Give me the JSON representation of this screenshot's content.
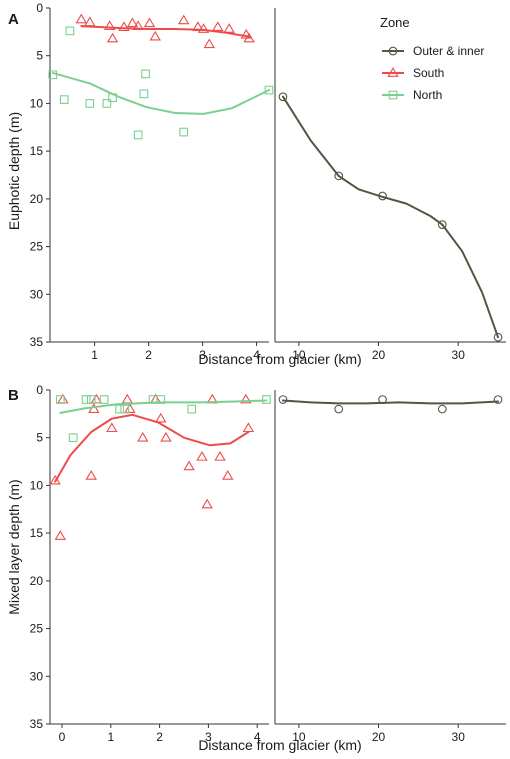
{
  "chart_data": [
    {
      "panel_label": "A",
      "type": "scatter",
      "xlabel": "Distance from glacier (km)",
      "ylabel": "Euphotic depth (m)",
      "y_reversed": true,
      "ylim": [
        0,
        35
      ],
      "yticks": [
        0,
        5,
        10,
        15,
        20,
        25,
        30,
        35
      ],
      "facets": [
        {
          "name": "near",
          "xlim": [
            0.3,
            4.15
          ],
          "xticks": [
            1,
            2,
            3,
            4
          ]
        },
        {
          "name": "far",
          "xlim": [
            7.5,
            36.5
          ],
          "xticks": [
            10,
            20,
            30
          ]
        }
      ],
      "series": [
        {
          "name": "Outer & inner",
          "facet": "far",
          "marker": "circle",
          "color": "#555544",
          "points": [
            [
              8.5,
              9.3
            ],
            [
              15.5,
              17.6
            ],
            [
              21,
              19.7
            ],
            [
              28.5,
              22.7
            ],
            [
              35.5,
              34.5
            ]
          ],
          "smooth": [
            [
              8.5,
              9.3
            ],
            [
              12,
              13.9
            ],
            [
              15.5,
              17.6
            ],
            [
              18,
              19
            ],
            [
              21,
              19.8
            ],
            [
              24,
              20.5
            ],
            [
              27,
              21.8
            ],
            [
              28.5,
              22.7
            ],
            [
              31,
              25.5
            ],
            [
              33.5,
              29.8
            ],
            [
              35.5,
              34.5
            ]
          ]
        },
        {
          "name": "South",
          "facet": "near",
          "marker": "triangle",
          "color": "#ee4b4b",
          "points": [
            [
              0.85,
              1.2
            ],
            [
              1.0,
              1.5
            ],
            [
              1.35,
              1.9
            ],
            [
              1.4,
              3.2
            ],
            [
              1.6,
              2.0
            ],
            [
              1.75,
              1.6
            ],
            [
              1.85,
              1.9
            ],
            [
              2.05,
              1.6
            ],
            [
              2.15,
              3.0
            ],
            [
              2.65,
              1.3
            ],
            [
              2.9,
              2.0
            ],
            [
              3.0,
              2.2
            ],
            [
              3.1,
              3.8
            ],
            [
              3.25,
              2.0
            ],
            [
              3.45,
              2.2
            ],
            [
              3.75,
              2.8
            ],
            [
              3.8,
              3.2
            ]
          ],
          "smooth": [
            [
              0.85,
              1.9
            ],
            [
              1.5,
              2.1
            ],
            [
              2.0,
              2.2
            ],
            [
              2.5,
              2.2
            ],
            [
              3.0,
              2.3
            ],
            [
              3.4,
              2.6
            ],
            [
              3.8,
              3.0
            ]
          ]
        },
        {
          "name": "North",
          "facet": "near",
          "marker": "square",
          "color": "#7ccf8f",
          "points": [
            [
              0.35,
              7.0
            ],
            [
              0.55,
              9.6
            ],
            [
              0.65,
              2.4
            ],
            [
              1.0,
              10.0
            ],
            [
              1.3,
              10.0
            ],
            [
              1.4,
              9.4
            ],
            [
              1.85,
              13.3
            ],
            [
              1.95,
              9.0
            ],
            [
              1.98,
              6.9
            ],
            [
              2.65,
              13.0
            ],
            [
              4.15,
              8.6
            ]
          ],
          "smooth": [
            [
              0.35,
              6.8
            ],
            [
              1.0,
              7.9
            ],
            [
              1.5,
              9.3
            ],
            [
              2.0,
              10.4
            ],
            [
              2.5,
              11.0
            ],
            [
              3.0,
              11.1
            ],
            [
              3.5,
              10.5
            ],
            [
              4.15,
              8.6
            ]
          ]
        }
      ]
    },
    {
      "panel_label": "B",
      "type": "scatter",
      "xlabel": "Distance from glacier (km)",
      "ylabel": "Mixed layer depth (m)",
      "y_reversed": true,
      "ylim": [
        0,
        35
      ],
      "yticks": [
        0,
        5,
        10,
        15,
        20,
        25,
        30,
        35
      ],
      "facets": [
        {
          "name": "near",
          "xlim": [
            -0.1,
            4.15
          ],
          "xticks": [
            0,
            1,
            2,
            3,
            4
          ]
        },
        {
          "name": "far",
          "xlim": [
            7.5,
            36.5
          ],
          "xticks": [
            10,
            20,
            30
          ]
        }
      ],
      "series": [
        {
          "name": "Outer & inner",
          "facet": "far",
          "marker": "circle",
          "color": "#555544",
          "points": [
            [
              8.5,
              1.0
            ],
            [
              15.5,
              2.0
            ],
            [
              21,
              1.0
            ],
            [
              28.5,
              2.0
            ],
            [
              35.5,
              1.0
            ]
          ],
          "smooth": [
            [
              8.5,
              1.1
            ],
            [
              12,
              1.3
            ],
            [
              15.5,
              1.4
            ],
            [
              19,
              1.4
            ],
            [
              23,
              1.3
            ],
            [
              27,
              1.4
            ],
            [
              31,
              1.4
            ],
            [
              35.5,
              1.2
            ]
          ]
        },
        {
          "name": "South",
          "facet": "near",
          "marker": "triangle",
          "color": "#ee4b4b",
          "points": [
            [
              0.0,
              9.5
            ],
            [
              0.1,
              15.3
            ],
            [
              0.15,
              1.0
            ],
            [
              0.7,
              9.0
            ],
            [
              0.75,
              2.0
            ],
            [
              0.8,
              1.0
            ],
            [
              1.1,
              4.0
            ],
            [
              1.4,
              1.0
            ],
            [
              1.45,
              2.0
            ],
            [
              1.7,
              5.0
            ],
            [
              1.95,
              1.0
            ],
            [
              2.05,
              3.0
            ],
            [
              2.15,
              5.0
            ],
            [
              2.6,
              8.0
            ],
            [
              2.85,
              7.0
            ],
            [
              2.95,
              12.0
            ],
            [
              3.05,
              1.0
            ],
            [
              3.2,
              7.0
            ],
            [
              3.35,
              9.0
            ],
            [
              3.7,
              1.0
            ],
            [
              3.75,
              4.0
            ]
          ],
          "smooth": [
            [
              0.0,
              9.6
            ],
            [
              0.3,
              6.8
            ],
            [
              0.7,
              4.4
            ],
            [
              1.1,
              3.0
            ],
            [
              1.5,
              2.6
            ],
            [
              2.0,
              3.4
            ],
            [
              2.5,
              5.0
            ],
            [
              3.0,
              5.8
            ],
            [
              3.4,
              5.6
            ],
            [
              3.75,
              4.4
            ]
          ]
        },
        {
          "name": "North",
          "facet": "near",
          "marker": "square",
          "color": "#7ccf8f",
          "points": [
            [
              0.1,
              1.0
            ],
            [
              0.35,
              5.0
            ],
            [
              0.6,
              1.0
            ],
            [
              0.7,
              1.0
            ],
            [
              0.95,
              1.0
            ],
            [
              1.25,
              2.0
            ],
            [
              1.35,
              2.0
            ],
            [
              1.9,
              1.0
            ],
            [
              2.05,
              1.0
            ],
            [
              2.65,
              2.0
            ],
            [
              4.1,
              1.0
            ]
          ],
          "smooth": [
            [
              0.1,
              2.4
            ],
            [
              0.6,
              1.9
            ],
            [
              1.2,
              1.5
            ],
            [
              2.0,
              1.3
            ],
            [
              2.8,
              1.3
            ],
            [
              3.5,
              1.2
            ],
            [
              4.1,
              1.1
            ]
          ]
        }
      ]
    }
  ],
  "legend": {
    "title": "Zone",
    "placement": "top-right",
    "entries": [
      {
        "label": "Outer & inner",
        "marker": "circle",
        "color": "#555544"
      },
      {
        "label": "South",
        "marker": "triangle",
        "color": "#ee4b4b"
      },
      {
        "label": "North",
        "marker": "square",
        "color": "#7ccf8f"
      }
    ]
  }
}
